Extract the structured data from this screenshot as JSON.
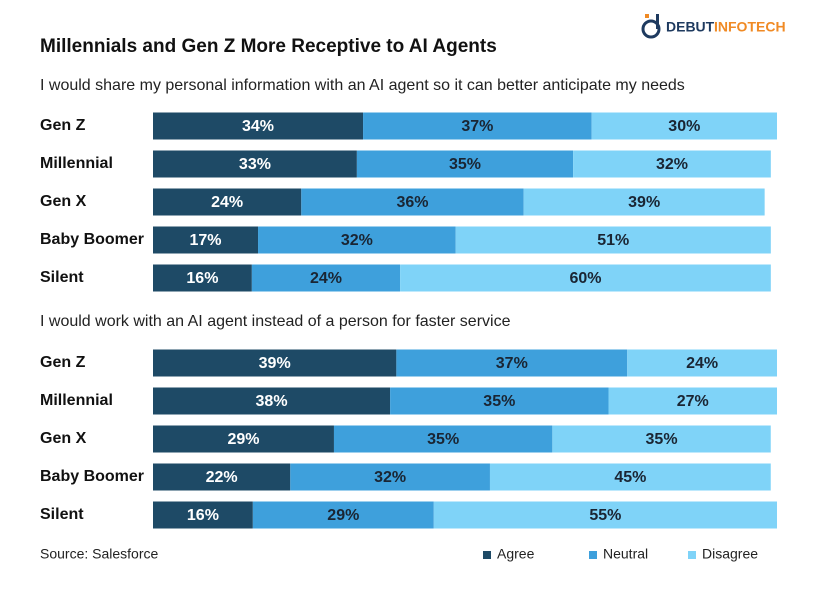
{
  "title": "Millennials and Gen Z More Receptive to AI Agents",
  "source": "Source: Salesforce",
  "logo": {
    "primary": "DEBUT",
    "secondary": "INFOTECH"
  },
  "chart_data": [
    {
      "type": "bar",
      "orientation": "horizontal",
      "stacked": true,
      "title": "I would share my personal information with an AI agent so it can better anticipate my needs",
      "categories": [
        "Gen Z",
        "Millennial",
        "Gen X",
        "Baby Boomer",
        "Silent"
      ],
      "series": [
        {
          "name": "Agree",
          "color": "#1e4a66",
          "values": [
            34,
            33,
            24,
            17,
            16
          ],
          "value_labels": [
            "34%",
            "33%",
            "24%",
            "17%",
            "16%"
          ]
        },
        {
          "name": "Neutral",
          "color": "#3ea0dc",
          "values": [
            37,
            35,
            36,
            32,
            24
          ],
          "value_labels": [
            "37%",
            "35%",
            "36%",
            "32%",
            "24%"
          ]
        },
        {
          "name": "Disagree",
          "color": "#7fd3f8",
          "values": [
            30,
            32,
            39,
            51,
            60
          ],
          "value_labels": [
            "30%",
            "32%",
            "39%",
            "51%",
            "60%"
          ]
        }
      ]
    },
    {
      "type": "bar",
      "orientation": "horizontal",
      "stacked": true,
      "title": "I would work with an AI agent instead of a person for faster service",
      "categories": [
        "Gen Z",
        "Millennial",
        "Gen X",
        "Baby Boomer",
        "Silent"
      ],
      "series": [
        {
          "color": "#1e4a66",
          "values": [
            39,
            38,
            29,
            22,
            16
          ],
          "value_labels": [
            "39%",
            "38%",
            "29%",
            "22%",
            "16%"
          ]
        },
        {
          "color": "#3ea0dc",
          "values": [
            37,
            35,
            35,
            32,
            29
          ],
          "value_labels": [
            "37%",
            "35%",
            "35%",
            "32%",
            "29%"
          ]
        },
        {
          "color": "#7fd3f8",
          "values": [
            24,
            27,
            35,
            45,
            55
          ],
          "value_labels": [
            "24%",
            "27%",
            "35%",
            "45%",
            "55%"
          ]
        }
      ]
    }
  ]
}
